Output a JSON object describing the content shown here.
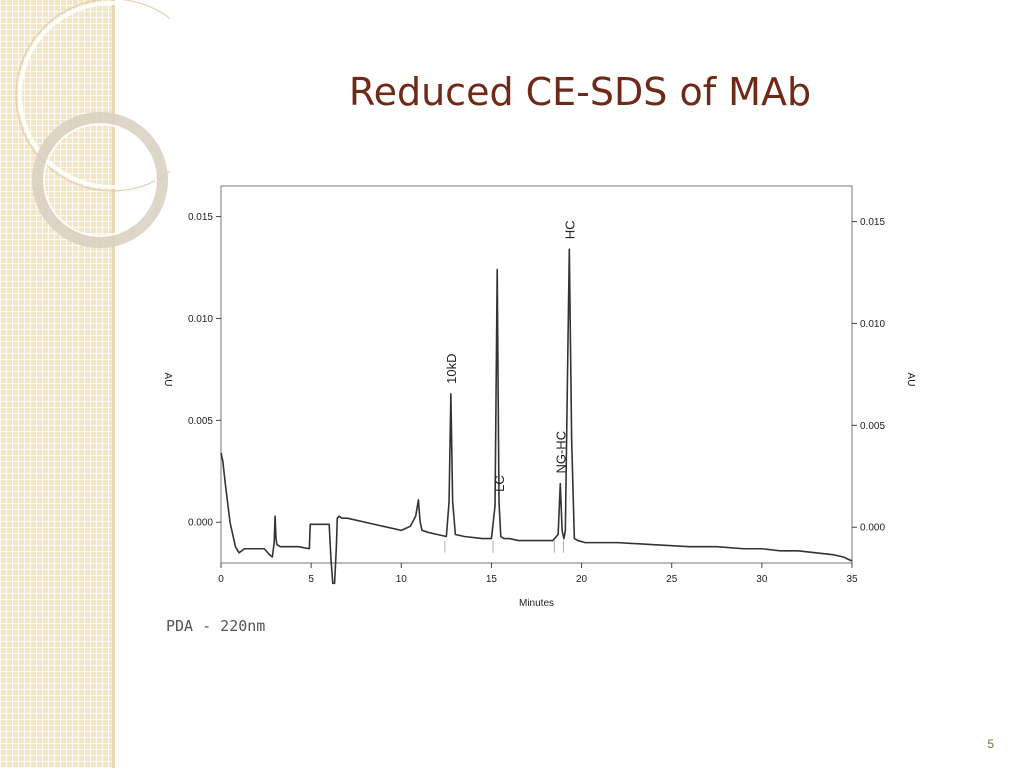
{
  "slide": {
    "title": "Reduced CE-SDS of MAb",
    "caption": "PDA - 220nm",
    "page_number": "5"
  },
  "theme": {
    "title_color": "#6e2a16",
    "sidebar_color": "#f4e6c4",
    "trace_color": "#333333"
  },
  "chart_data": {
    "type": "line",
    "title": "",
    "xlabel": "Minutes",
    "ylabel_left": "AU",
    "ylabel_right": "AU",
    "xlim": [
      0,
      35
    ],
    "ylim": [
      -0.002,
      0.0165
    ],
    "x_ticks": [
      0,
      5,
      10,
      15,
      20,
      25,
      30,
      35
    ],
    "y_ticks": [
      0.0,
      0.005,
      0.01,
      0.015
    ],
    "y_tick_labels": [
      "0.000",
      "0.005",
      "0.010",
      "0.015"
    ],
    "grid": false,
    "series": [
      {
        "x": [
          0.0,
          0.1,
          0.25,
          0.5,
          0.8,
          1.0,
          1.3,
          1.6,
          2.0,
          2.4,
          2.7,
          2.85,
          2.95,
          3.0,
          3.05,
          3.1,
          3.3,
          3.8,
          4.3,
          4.9,
          4.95,
          5.05,
          5.5,
          6.0,
          6.1,
          6.2,
          6.3,
          6.4,
          6.45,
          6.55,
          6.7,
          7.0,
          8.0,
          9.0,
          10.0,
          10.5,
          10.8,
          10.95,
          11.0,
          11.05,
          11.15,
          11.5,
          12.0,
          12.5,
          12.65,
          12.75,
          12.85,
          13.0,
          13.5,
          14.5,
          15.0,
          15.2,
          15.32,
          15.42,
          15.52,
          15.7,
          16.0,
          16.5,
          17.5,
          18.4,
          18.7,
          18.82,
          18.92,
          19.02,
          19.1,
          19.2,
          19.32,
          19.45,
          19.6,
          19.8,
          20.2,
          21.0,
          22.0,
          24.0,
          26.0,
          27.5,
          29.0,
          30.0,
          31.0,
          32.0,
          33.0,
          34.0,
          34.5,
          35.0
        ],
        "y": [
          0.0034,
          0.003,
          0.0018,
          0.0,
          -0.0012,
          -0.0015,
          -0.0013,
          -0.0013,
          -0.0013,
          -0.0013,
          -0.0016,
          -0.0017,
          -0.001,
          0.0003,
          -0.0008,
          -0.0011,
          -0.0012,
          -0.0012,
          -0.0012,
          -0.0013,
          -0.0001,
          -0.0001,
          -0.0001,
          -0.0001,
          -0.0018,
          -0.003,
          -0.003,
          -0.0012,
          0.0002,
          0.0003,
          0.0002,
          0.0002,
          0.0,
          -0.0002,
          -0.0004,
          -0.0002,
          0.0003,
          0.0011,
          0.0005,
          0.0,
          -0.0004,
          -0.0005,
          -0.0006,
          -0.0007,
          0.001,
          0.0063,
          0.001,
          -0.0006,
          -0.0007,
          -0.0008,
          -0.0008,
          0.0008,
          0.0124,
          0.001,
          -0.0007,
          -0.0008,
          -0.0008,
          -0.0009,
          -0.0009,
          -0.0009,
          -0.0006,
          0.0019,
          -0.0004,
          -0.0008,
          -0.0004,
          0.006,
          0.0134,
          0.004,
          -0.0008,
          -0.0009,
          -0.001,
          -0.001,
          -0.001,
          -0.0011,
          -0.0012,
          -0.0012,
          -0.0013,
          -0.0013,
          -0.0014,
          -0.0014,
          -0.0015,
          -0.0016,
          -0.0017,
          -0.0019
        ]
      }
    ],
    "annotations": [
      {
        "label": "10kD",
        "x": 12.75
      },
      {
        "label": "LC",
        "x": 15.42
      },
      {
        "label": "NG-HC",
        "x": 18.82
      },
      {
        "label": "HC",
        "x": 19.32
      }
    ]
  }
}
